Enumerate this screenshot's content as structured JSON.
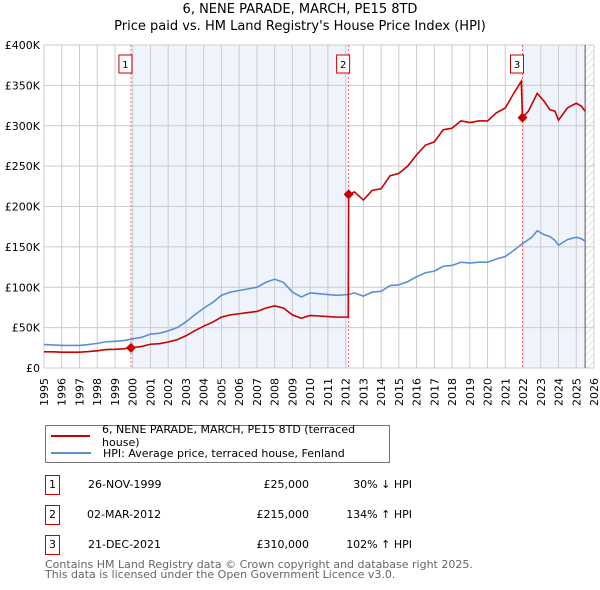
{
  "chart_data": {
    "type": "line",
    "title": "6, NENE PARADE, MARCH, PE15 8TD",
    "subtitle": "Price paid vs. HM Land Registry's House Price Index (HPI)",
    "xlim": [
      1995,
      2026
    ],
    "ylim": [
      0,
      400000
    ],
    "x_ticks": [
      "1995",
      "1996",
      "1997",
      "1998",
      "1999",
      "2000",
      "2001",
      "2002",
      "2003",
      "2004",
      "2005",
      "2006",
      "2007",
      "2008",
      "2009",
      "2010",
      "2011",
      "2012",
      "2013",
      "2014",
      "2015",
      "2016",
      "2017",
      "2018",
      "2019",
      "2020",
      "2021",
      "2022",
      "2023",
      "2024",
      "2025",
      "2026"
    ],
    "y_ticks": [
      {
        "v": 0,
        "label": "£0"
      },
      {
        "v": 50000,
        "label": "£50K"
      },
      {
        "v": 100000,
        "label": "£100K"
      },
      {
        "v": 150000,
        "label": "£150K"
      },
      {
        "v": 200000,
        "label": "£200K"
      },
      {
        "v": 250000,
        "label": "£250K"
      },
      {
        "v": 300000,
        "label": "£300K"
      },
      {
        "v": 350000,
        "label": "£350K"
      },
      {
        "v": 400000,
        "label": "£400K"
      }
    ],
    "grid": true,
    "series": [
      {
        "name": "6, NENE PARADE, MARCH, PE15 8TD (terraced house)",
        "color": "#cc0000",
        "x": [
          1995,
          1995.5,
          1996,
          1996.5,
          1997,
          1997.5,
          1998,
          1998.5,
          1999,
          1999.5,
          1999.9,
          2000.5,
          2001,
          2001.5,
          2002,
          2002.5,
          2003,
          2003.5,
          2004,
          2004.5,
          2005,
          2005.5,
          2006,
          2006.5,
          2007,
          2007.5,
          2008,
          2008.5,
          2009,
          2009.5,
          2010,
          2010.5,
          2011,
          2011.5,
          2012.15,
          2012.17,
          2012.5,
          2013,
          2013.5,
          2014,
          2014.5,
          2015,
          2015.5,
          2016,
          2016.5,
          2017,
          2017.5,
          2018,
          2018.5,
          2019,
          2019.5,
          2020,
          2020.5,
          2021,
          2021.5,
          2021.9,
          2021.97,
          2022.3,
          2022.8,
          2023.2,
          2023.5,
          2023.8,
          2024,
          2024.5,
          2025,
          2025.3,
          2025.5
        ],
        "y": [
          20,
          20,
          19.6,
          19.6,
          19.6,
          20.3,
          21.3,
          22.8,
          23.1,
          23.8,
          25,
          26.6,
          29.4,
          30.1,
          32.2,
          35,
          39.9,
          46.2,
          51.8,
          56.7,
          63,
          65.8,
          67.2,
          68.6,
          70,
          74.2,
          77,
          74.2,
          65.8,
          61.6,
          65.1,
          64.4,
          63.7,
          63,
          63,
          215,
          218,
          208,
          220,
          222,
          238,
          241,
          250,
          264,
          276,
          280,
          295,
          297,
          306,
          304,
          306,
          306,
          316,
          322,
          341,
          355,
          310,
          318,
          340,
          330,
          320,
          318,
          307,
          322,
          328,
          324,
          318
        ]
      },
      {
        "name": "HPI: Average price, terraced house, Fenland",
        "color": "#5b8fd4",
        "x": [
          1995,
          1995.5,
          1996,
          1996.5,
          1997,
          1997.5,
          1998,
          1998.5,
          1999,
          1999.5,
          1999.9,
          2000.5,
          2001,
          2001.5,
          2002,
          2002.5,
          2003,
          2003.5,
          2004,
          2004.5,
          2005,
          2005.5,
          2006,
          2006.5,
          2007,
          2007.5,
          2008,
          2008.5,
          2009,
          2009.5,
          2010,
          2010.5,
          2011,
          2011.5,
          2012.17,
          2012.5,
          2013,
          2013.5,
          2014,
          2014.5,
          2015,
          2015.5,
          2016,
          2016.5,
          2017,
          2017.5,
          2018,
          2018.5,
          2019,
          2019.5,
          2020,
          2020.5,
          2021,
          2021.5,
          2021.97,
          2022.5,
          2022.8,
          2023.2,
          2023.5,
          2023.8,
          2024,
          2024.5,
          2025,
          2025.3,
          2025.5
        ],
        "y": [
          29,
          28.5,
          28,
          28,
          28,
          29,
          30.5,
          32.5,
          33,
          34,
          35.7,
          38,
          42,
          43,
          46,
          50,
          57,
          66,
          74,
          81,
          90,
          94,
          96,
          98,
          100,
          106,
          110,
          106,
          94,
          88,
          93,
          92,
          91,
          90,
          91,
          93,
          89,
          94,
          95,
          102,
          103,
          107,
          113,
          118,
          120,
          126,
          127,
          131,
          130,
          131,
          131,
          135,
          138,
          146,
          154,
          162,
          170,
          165,
          163,
          158,
          152,
          159,
          162,
          160,
          157
        ]
      }
    ],
    "y_units": "thousands GBP",
    "sales": [
      {
        "n": "1",
        "x": 1999.9,
        "y": 25,
        "date": "26-NOV-1999",
        "price": "£25,000",
        "hpi": "30% ↓ HPI"
      },
      {
        "n": "2",
        "x": 2012.17,
        "y": 215,
        "date": "02-MAR-2012",
        "price": "£215,000",
        "hpi": "134% ↑ HPI"
      },
      {
        "n": "3",
        "x": 2021.97,
        "y": 310,
        "date": "21-DEC-2021",
        "price": "£310,000",
        "hpi": "102% ↑ HPI"
      }
    ],
    "shaded": [
      [
        1999.9,
        2012.17
      ],
      [
        2021.97,
        2025.5
      ]
    ],
    "data_end": 2025.5,
    "legend_position": "bottom"
  },
  "footer": {
    "line1": "Contains HM Land Registry data © Crown copyright and database right 2025.",
    "line2": "This data is licensed under the Open Government Licence v3.0."
  }
}
